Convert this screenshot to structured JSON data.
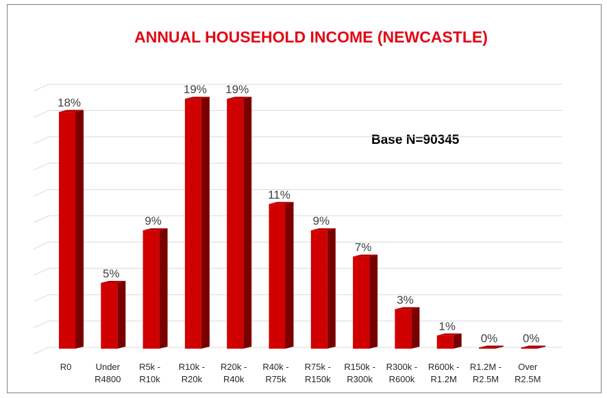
{
  "chart_data": {
    "type": "bar",
    "title": "ANNUAL HOUSEHOLD INCOME (NEWCASTLE)",
    "annotation": "Base N=90345",
    "categories": [
      [
        "R0"
      ],
      [
        "Under",
        "R4800"
      ],
      [
        "R5k -",
        "R10k"
      ],
      [
        "R10k -",
        "R20k"
      ],
      [
        "R20k -",
        "R40k"
      ],
      [
        "R40k -",
        "R75k"
      ],
      [
        "R75k -",
        "R150k"
      ],
      [
        "R150k -",
        "R300k"
      ],
      [
        "R300k -",
        "R600k"
      ],
      [
        "R600k -",
        "R1.2M"
      ],
      [
        "R1.2M -",
        "R2.5M"
      ],
      [
        "Over",
        "R2.5M"
      ]
    ],
    "values": [
      18,
      5,
      9,
      19,
      19,
      11,
      9,
      7,
      3,
      1,
      0,
      0
    ],
    "data_labels": [
      "18%",
      "5%",
      "9%",
      "19%",
      "19%",
      "11%",
      "9%",
      "7%",
      "3%",
      "1%",
      "0%",
      "0%"
    ],
    "unit": "%",
    "ylim": [
      0,
      20
    ],
    "grid": true,
    "legend": "none",
    "colors": {
      "bar_front": "#d00000",
      "bar_side": "#7a0000",
      "bar_top": "#b00000",
      "title": "#e30613"
    }
  }
}
